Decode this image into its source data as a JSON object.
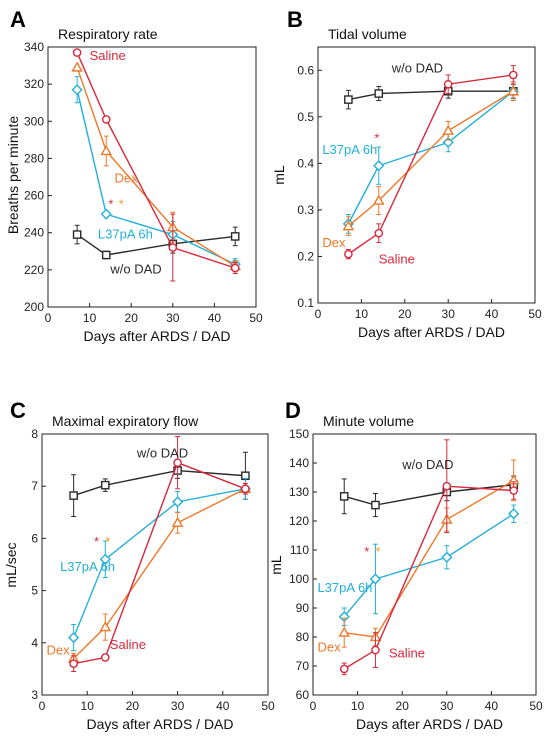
{
  "colors": {
    "Saline": "#d8283c",
    "Dex": "#f07828",
    "L37pA 6h": "#22b0d8",
    "w/o DAD": "#2a2a2a",
    "star_red": "#d8283c",
    "star_orange": "#f0a020"
  },
  "chart_data": [
    {
      "panel": "A",
      "type": "line",
      "title": "Respiratory rate",
      "xlabel": "Days after ARDS / DAD",
      "ylabel": "Breaths per minute",
      "xlim": [
        0,
        50
      ],
      "ylim": [
        200,
        340
      ],
      "xticks": [
        0,
        10,
        20,
        30,
        40,
        50
      ],
      "yticks": [
        200,
        220,
        240,
        260,
        280,
        300,
        320,
        340
      ],
      "series": [
        {
          "name": "Saline",
          "marker": "circle",
          "x": [
            7,
            14,
            30,
            45
          ],
          "y": [
            337,
            301,
            232,
            221
          ],
          "err": [
            0,
            0,
            18,
            3
          ]
        },
        {
          "name": "Dex",
          "marker": "triangle",
          "x": [
            7,
            14,
            30,
            45
          ],
          "y": [
            329,
            284,
            243,
            222
          ],
          "err": [
            0,
            8,
            8,
            3
          ]
        },
        {
          "name": "L37pA 6h",
          "marker": "diamond",
          "x": [
            7,
            14,
            30,
            45
          ],
          "y": [
            317,
            250,
            239,
            223
          ],
          "err": [
            7,
            0,
            7,
            3
          ]
        },
        {
          "name": "w/o DAD",
          "marker": "square",
          "x": [
            7,
            14,
            30,
            45
          ],
          "y": [
            239,
            228,
            234,
            238
          ],
          "err": [
            5,
            2,
            5,
            5
          ]
        }
      ],
      "annotations": [
        {
          "text": "Saline",
          "series": "Saline",
          "x": 10,
          "y": 333
        },
        {
          "text": "Dex",
          "series": "Dex",
          "x": 16,
          "y": 267
        },
        {
          "text": "L37pA 6h",
          "series": "L37pA 6h",
          "x": 12,
          "y": 237
        },
        {
          "text": "w/o DAD",
          "series": "w/o DAD",
          "x": 15,
          "y": 218
        },
        {
          "text": "*",
          "color": "star_red",
          "x": 14.5,
          "y": 253
        },
        {
          "text": "*",
          "color": "star_orange",
          "x": 17,
          "y": 253
        }
      ]
    },
    {
      "panel": "B",
      "type": "line",
      "title": "Tidal volume",
      "xlabel": "Days after ARDS / DAD",
      "ylabel": "mL",
      "xlim": [
        0,
        50
      ],
      "ylim": [
        0.1,
        0.65
      ],
      "xticks": [
        0,
        10,
        20,
        30,
        40,
        50
      ],
      "yticks": [
        0.1,
        0.2,
        0.3,
        0.4,
        0.5,
        0.6
      ],
      "series": [
        {
          "name": "Saline",
          "marker": "circle",
          "x": [
            7,
            14,
            30,
            45
          ],
          "y": [
            0.205,
            0.25,
            0.57,
            0.59
          ],
          "err": [
            0.01,
            0.02,
            0.02,
            0.02
          ]
        },
        {
          "name": "Dex",
          "marker": "triangle",
          "x": [
            7,
            14,
            30,
            45
          ],
          "y": [
            0.265,
            0.32,
            0.47,
            0.555
          ],
          "err": [
            0.02,
            0.03,
            0.02,
            0.02
          ]
        },
        {
          "name": "L37pA 6h",
          "marker": "diamond",
          "x": [
            7,
            14,
            30,
            45
          ],
          "y": [
            0.27,
            0.395,
            0.445,
            0.555
          ],
          "err": [
            0.02,
            0.04,
            0.02,
            0.02
          ]
        },
        {
          "name": "w/o DAD",
          "marker": "square",
          "x": [
            7,
            14,
            30,
            45
          ],
          "y": [
            0.537,
            0.55,
            0.555,
            0.555
          ],
          "err": [
            0.02,
            0.015,
            0.015,
            0.015
          ]
        }
      ],
      "annotations": [
        {
          "text": "w/o DAD",
          "series": "w/o DAD",
          "x": 17,
          "y": 0.595
        },
        {
          "text": "L37pA 6h",
          "series": "L37pA 6h",
          "x": 1,
          "y": 0.42
        },
        {
          "text": "Dex",
          "series": "Dex",
          "x": 1,
          "y": 0.22
        },
        {
          "text": "Saline",
          "series": "Saline",
          "x": 14,
          "y": 0.185
        },
        {
          "text": "*",
          "color": "star_red",
          "x": 13,
          "y": 0.445
        }
      ]
    },
    {
      "panel": "C",
      "type": "line",
      "title": "Maximal expiratory flow",
      "xlabel": "Days after ARDS / DAD",
      "ylabel": "mL/sec",
      "xlim": [
        0,
        50
      ],
      "ylim": [
        3,
        8
      ],
      "xticks": [
        0,
        10,
        20,
        30,
        40,
        50
      ],
      "yticks": [
        3,
        4,
        5,
        6,
        7,
        8
      ],
      "series": [
        {
          "name": "Saline",
          "marker": "circle",
          "x": [
            7,
            14,
            30,
            45
          ],
          "y": [
            3.6,
            3.72,
            7.45,
            6.95
          ],
          "err": [
            0.15,
            0,
            0.5,
            0.1
          ]
        },
        {
          "name": "Dex",
          "marker": "triangle",
          "x": [
            7,
            14,
            30,
            45
          ],
          "y": [
            3.7,
            4.3,
            6.3,
            6.95
          ],
          "err": [
            0.1,
            0.25,
            0.2,
            0.1
          ]
        },
        {
          "name": "L37pA 6h",
          "marker": "diamond",
          "x": [
            7,
            14,
            30,
            45
          ],
          "y": [
            4.1,
            5.6,
            6.7,
            6.95
          ],
          "err": [
            0.25,
            0.35,
            0.2,
            0.2
          ]
        },
        {
          "name": "w/o DAD",
          "marker": "square",
          "x": [
            7,
            14,
            30,
            45
          ],
          "y": [
            6.82,
            7.02,
            7.3,
            7.2
          ],
          "err": [
            0.4,
            0.12,
            0.15,
            0.45
          ]
        }
      ],
      "annotations": [
        {
          "text": "w/o DAD",
          "series": "w/o DAD",
          "x": 21,
          "y": 7.55
        },
        {
          "text": "L37pA 6h",
          "series": "L37pA 6h",
          "x": 4,
          "y": 5.38
        },
        {
          "text": "Dex",
          "series": "Dex",
          "x": 1,
          "y": 3.78
        },
        {
          "text": "Saline",
          "series": "Saline",
          "x": 15,
          "y": 3.88
        },
        {
          "text": "*",
          "color": "star_red",
          "x": 11.5,
          "y": 5.85
        },
        {
          "text": "*",
          "color": "star_orange",
          "x": 14,
          "y": 5.85
        }
      ]
    },
    {
      "panel": "D",
      "type": "line",
      "title": "Minute volume",
      "xlabel": "Days after ARDS / DAD",
      "ylabel": "mL",
      "xlim": [
        0,
        50
      ],
      "ylim": [
        60,
        150
      ],
      "xticks": [
        0,
        10,
        20,
        30,
        40,
        50
      ],
      "yticks": [
        60,
        70,
        80,
        90,
        100,
        110,
        120,
        130,
        140,
        150
      ],
      "series": [
        {
          "name": "Saline",
          "marker": "circle",
          "x": [
            7,
            14,
            30,
            45
          ],
          "y": [
            69,
            75.5,
            132,
            130.5
          ],
          "err": [
            2,
            6,
            16,
            3
          ]
        },
        {
          "name": "Dex",
          "marker": "triangle",
          "x": [
            7,
            14,
            30,
            45
          ],
          "y": [
            81.5,
            80,
            120.5,
            134
          ],
          "err": [
            5,
            3,
            4,
            7
          ]
        },
        {
          "name": "L37pA 6h",
          "marker": "diamond",
          "x": [
            7,
            14,
            30,
            45
          ],
          "y": [
            87,
            100,
            107.5,
            122.5
          ],
          "err": [
            3,
            12,
            4,
            3
          ]
        },
        {
          "name": "w/o DAD",
          "marker": "square",
          "x": [
            7,
            14,
            30,
            45
          ],
          "y": [
            128.5,
            125.5,
            130,
            132.5
          ],
          "err": [
            6,
            4,
            3,
            3
          ]
        }
      ],
      "annotations": [
        {
          "text": "w/o DAD",
          "series": "w/o DAD",
          "x": 20,
          "y": 138
        },
        {
          "text": "L37pA 6h",
          "series": "L37pA 6h",
          "x": 1,
          "y": 95.5
        },
        {
          "text": "Dex",
          "series": "Dex",
          "x": 1,
          "y": 75
        },
        {
          "text": "Saline",
          "series": "Saline",
          "x": 17,
          "y": 73
        },
        {
          "text": "*",
          "color": "star_red",
          "x": 11.5,
          "y": 108
        },
        {
          "text": "*",
          "color": "star_orange",
          "x": 14,
          "y": 108
        }
      ]
    }
  ]
}
